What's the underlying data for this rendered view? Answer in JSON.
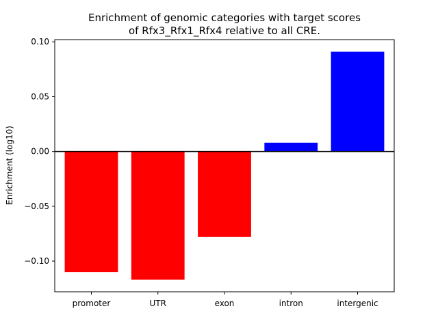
{
  "chart_data": {
    "type": "bar",
    "title_lines": [
      "Enrichment of genomic categories with target scores",
      "of Rfx3_Rfx1_Rfx4 relative to all CRE."
    ],
    "xlabel": "",
    "ylabel": "Enrichment (log10)",
    "categories": [
      "promoter",
      "UTR",
      "exon",
      "intron",
      "intergenic"
    ],
    "values": [
      -0.11,
      -0.117,
      -0.078,
      0.008,
      0.091
    ],
    "ylim": [
      -0.128,
      0.102
    ],
    "yticks": [
      -0.1,
      -0.05,
      0.0,
      0.05,
      0.1
    ],
    "ytick_labels": [
      "−0.10",
      "−0.05",
      "0.00",
      "0.05",
      "0.10"
    ],
    "colors": {
      "positive": "#0000ff",
      "negative": "#ff0000",
      "baseline": "#000000"
    },
    "baseline": 0,
    "grid": false,
    "legend": "none"
  }
}
